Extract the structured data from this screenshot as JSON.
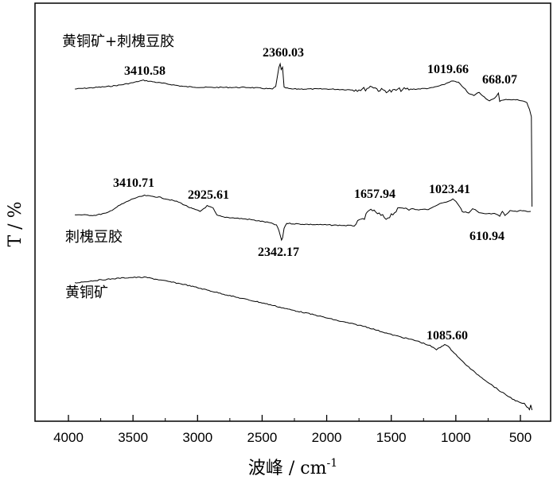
{
  "chart_data": {
    "type": "line",
    "xlabel": "波峰",
    "xunit": "cm",
    "xunit_exp": "-1",
    "ylabel": "T / %",
    "xlim": [
      4100,
      350
    ],
    "x_reversed": true,
    "y_ticks_visible": false,
    "grid": false,
    "legend": "none",
    "xticks": [
      {
        "value": 4000,
        "label": "4000"
      },
      {
        "value": 3500,
        "label": "3500"
      },
      {
        "value": 3000,
        "label": "3000"
      },
      {
        "value": 2500,
        "label": "2500"
      },
      {
        "value": 2000,
        "label": "2000"
      },
      {
        "value": 1500,
        "label": "1500"
      },
      {
        "value": 1000,
        "label": "1000"
      },
      {
        "value": 500,
        "label": "500"
      }
    ],
    "series": [
      {
        "name": "黄铜矿+刺槐豆胶",
        "points": [
          [
            3950,
            112
          ],
          [
            3700,
            109
          ],
          [
            3600,
            107
          ],
          [
            3500,
            104
          ],
          [
            3420,
            101
          ],
          [
            3300,
            104
          ],
          [
            3100,
            109
          ],
          [
            2950,
            110
          ],
          [
            2600,
            110
          ],
          [
            2420,
            112
          ],
          [
            2395,
            109
          ],
          [
            2370,
            85
          ],
          [
            2360,
            80
          ],
          [
            2352,
            88
          ],
          [
            2342,
            85
          ],
          [
            2330,
            110
          ],
          [
            2280,
            112
          ],
          [
            2000,
            112
          ],
          [
            1800,
            113
          ],
          [
            1700,
            112
          ],
          [
            1650,
            108
          ],
          [
            1600,
            113
          ],
          [
            1500,
            115
          ],
          [
            1450,
            113
          ],
          [
            1300,
            112
          ],
          [
            1200,
            111
          ],
          [
            1100,
            107
          ],
          [
            1050,
            103
          ],
          [
            1020,
            102
          ],
          [
            980,
            104
          ],
          [
            940,
            110
          ],
          [
            900,
            118
          ],
          [
            860,
            120
          ],
          [
            820,
            116
          ],
          [
            780,
            122
          ],
          [
            740,
            127
          ],
          [
            700,
            124
          ],
          [
            670,
            117
          ],
          [
            660,
            127
          ],
          [
            600,
            125
          ],
          [
            500,
            126
          ],
          [
            450,
            129
          ],
          [
            430,
            138
          ],
          [
            415,
            147
          ],
          [
            410,
            260
          ]
        ],
        "peaks": [
          {
            "label": "3410.58",
            "x": 3410.58
          },
          {
            "label": "2360.03",
            "x": 2360.03
          },
          {
            "label": "1019.66",
            "x": 1019.66
          },
          {
            "label": "668.07",
            "x": 668.07
          }
        ]
      },
      {
        "name": "刺槐豆胶",
        "points": [
          [
            3950,
            270
          ],
          [
            3800,
            271
          ],
          [
            3700,
            268
          ],
          [
            3600,
            258
          ],
          [
            3500,
            250
          ],
          [
            3410,
            246
          ],
          [
            3300,
            248
          ],
          [
            3150,
            254
          ],
          [
            3050,
            262
          ],
          [
            2980,
            266
          ],
          [
            2926,
            259
          ],
          [
            2880,
            262
          ],
          [
            2850,
            271
          ],
          [
            2800,
            273
          ],
          [
            2600,
            276
          ],
          [
            2450,
            280
          ],
          [
            2390,
            283
          ],
          [
            2370,
            290
          ],
          [
            2350,
            302
          ],
          [
            2342,
            300
          ],
          [
            2330,
            287
          ],
          [
            2310,
            281
          ],
          [
            2200,
            282
          ],
          [
            2000,
            283
          ],
          [
            1800,
            284
          ],
          [
            1720,
            276
          ],
          [
            1670,
            266
          ],
          [
            1658,
            263
          ],
          [
            1620,
            268
          ],
          [
            1580,
            271
          ],
          [
            1540,
            275
          ],
          [
            1500,
            270
          ],
          [
            1450,
            264
          ],
          [
            1400,
            261
          ],
          [
            1300,
            264
          ],
          [
            1200,
            263
          ],
          [
            1150,
            258
          ],
          [
            1100,
            255
          ],
          [
            1050,
            253
          ],
          [
            1023,
            250
          ],
          [
            1000,
            253
          ],
          [
            970,
            260
          ],
          [
            950,
            266
          ],
          [
            900,
            268
          ],
          [
            870,
            263
          ],
          [
            850,
            264
          ],
          [
            820,
            268
          ],
          [
            780,
            269
          ],
          [
            700,
            269
          ],
          [
            660,
            272
          ],
          [
            640,
            266
          ],
          [
            620,
            271
          ],
          [
            580,
            265
          ],
          [
            540,
            266
          ],
          [
            500,
            265
          ],
          [
            460,
            266
          ],
          [
            420,
            266
          ]
        ],
        "peaks": [
          {
            "label": "3410.71",
            "x": 3410.71
          },
          {
            "label": "2925.61",
            "x": 2925.61
          },
          {
            "label": "2342.17",
            "x": 2342.17
          },
          {
            "label": "1657.94",
            "x": 1657.94
          },
          {
            "label": "1023.41",
            "x": 1023.41
          },
          {
            "label": "610.94",
            "x": 610.94
          }
        ]
      },
      {
        "name": "黄铜矿",
        "points": [
          [
            3950,
            356
          ],
          [
            3800,
            353
          ],
          [
            3600,
            350
          ],
          [
            3500,
            349
          ],
          [
            3400,
            349
          ],
          [
            3300,
            352
          ],
          [
            3100,
            358
          ],
          [
            2900,
            366
          ],
          [
            2700,
            374
          ],
          [
            2500,
            381
          ],
          [
            2300,
            389
          ],
          [
            2100,
            396
          ],
          [
            1900,
            404
          ],
          [
            1700,
            411
          ],
          [
            1500,
            421
          ],
          [
            1400,
            425
          ],
          [
            1300,
            429
          ],
          [
            1200,
            435
          ],
          [
            1150,
            440
          ],
          [
            1120,
            437
          ],
          [
            1086,
            433
          ],
          [
            1060,
            436
          ],
          [
            1000,
            446
          ],
          [
            960,
            453
          ],
          [
            900,
            462
          ],
          [
            850,
            469
          ],
          [
            800,
            475
          ],
          [
            750,
            481
          ],
          [
            700,
            487
          ],
          [
            650,
            493
          ],
          [
            600,
            498
          ],
          [
            550,
            503
          ],
          [
            500,
            507
          ],
          [
            470,
            508
          ],
          [
            450,
            512
          ],
          [
            430,
            515
          ],
          [
            420,
            510
          ],
          [
            410,
            516
          ]
        ],
        "peaks": [
          {
            "label": "1085.60",
            "x": 1085.6
          }
        ]
      }
    ]
  }
}
